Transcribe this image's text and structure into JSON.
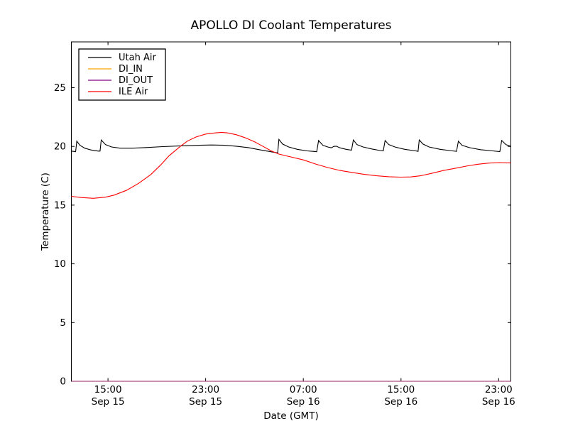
{
  "chart_data": {
    "type": "line",
    "title": "APOLLO DI Coolant Temperatures",
    "xlabel": "Date (GMT)",
    "ylabel": "Temperature (C)",
    "xlim": [
      0,
      36
    ],
    "ylim": [
      0,
      28.9
    ],
    "x_unit": "hours since Sep 15 12:00 GMT",
    "grid": false,
    "legend_position": "upper-left",
    "x_ticks": [
      {
        "t": 3,
        "time": "15:00",
        "date": "Sep 15"
      },
      {
        "t": 11,
        "time": "23:00",
        "date": "Sep 15"
      },
      {
        "t": 19,
        "time": "07:00",
        "date": "Sep 16"
      },
      {
        "t": 27,
        "time": "15:00",
        "date": "Sep 16"
      },
      {
        "t": 35,
        "time": "23:00",
        "date": "Sep 16"
      }
    ],
    "y_ticks": [
      0,
      5,
      10,
      15,
      20,
      25
    ],
    "series": [
      {
        "name": "Utah Air",
        "color": "#000000",
        "points": [
          [
            0,
            19.6
          ],
          [
            0.35,
            19.55
          ],
          [
            0.45,
            20.45
          ],
          [
            0.7,
            20.1
          ],
          [
            1.1,
            19.85
          ],
          [
            1.6,
            19.7
          ],
          [
            2.2,
            19.6
          ],
          [
            2.35,
            19.6
          ],
          [
            2.45,
            20.55
          ],
          [
            2.8,
            20.15
          ],
          [
            3.3,
            19.95
          ],
          [
            4,
            19.85
          ],
          [
            5,
            19.85
          ],
          [
            6,
            19.9
          ],
          [
            7.5,
            19.98
          ],
          [
            9,
            20.05
          ],
          [
            10.5,
            20.1
          ],
          [
            11.5,
            20.12
          ],
          [
            12.5,
            20.1
          ],
          [
            13.5,
            20.02
          ],
          [
            14.5,
            19.9
          ],
          [
            15.5,
            19.7
          ],
          [
            16.3,
            19.55
          ],
          [
            16.9,
            19.45
          ],
          [
            17,
            20.6
          ],
          [
            17.3,
            20.2
          ],
          [
            17.8,
            19.95
          ],
          [
            18.5,
            19.75
          ],
          [
            19.3,
            19.62
          ],
          [
            20.1,
            19.55
          ],
          [
            20.25,
            20.5
          ],
          [
            20.6,
            20.1
          ],
          [
            21,
            19.95
          ],
          [
            21.3,
            19.88
          ],
          [
            21.5,
            20
          ],
          [
            21.7,
            20.02
          ],
          [
            22,
            19.88
          ],
          [
            22.5,
            19.75
          ],
          [
            22.95,
            19.68
          ],
          [
            23.1,
            20.55
          ],
          [
            23.4,
            20.15
          ],
          [
            23.9,
            19.95
          ],
          [
            24.6,
            19.78
          ],
          [
            25.3,
            19.65
          ],
          [
            25.55,
            19.62
          ],
          [
            25.7,
            20.5
          ],
          [
            26,
            20.15
          ],
          [
            26.5,
            19.95
          ],
          [
            27.3,
            19.75
          ],
          [
            28.2,
            19.62
          ],
          [
            28.4,
            19.58
          ],
          [
            28.5,
            20.55
          ],
          [
            28.8,
            20.2
          ],
          [
            29.3,
            19.95
          ],
          [
            30.2,
            19.75
          ],
          [
            31.2,
            19.62
          ],
          [
            31.55,
            19.58
          ],
          [
            31.7,
            20.45
          ],
          [
            32,
            20.1
          ],
          [
            32.6,
            19.9
          ],
          [
            33.5,
            19.72
          ],
          [
            34.5,
            19.62
          ],
          [
            35.1,
            19.56
          ],
          [
            35.25,
            20.5
          ],
          [
            35.6,
            20.15
          ],
          [
            36,
            20
          ]
        ]
      },
      {
        "name": "DI_IN",
        "color": "#ffa500",
        "points": [
          [
            0,
            0
          ],
          [
            36,
            0
          ]
        ]
      },
      {
        "name": "DI_OUT",
        "color": "#800080",
        "points": [
          [
            0,
            0
          ],
          [
            36,
            0
          ]
        ]
      },
      {
        "name": "ILE Air",
        "color": "#ff0000",
        "points": [
          [
            0,
            15.75
          ],
          [
            0.8,
            15.65
          ],
          [
            1.8,
            15.58
          ],
          [
            2.8,
            15.68
          ],
          [
            3.5,
            15.85
          ],
          [
            4.5,
            16.25
          ],
          [
            5.5,
            16.85
          ],
          [
            6.5,
            17.6
          ],
          [
            7.3,
            18.4
          ],
          [
            8,
            19.2
          ],
          [
            8.8,
            19.9
          ],
          [
            9.5,
            20.45
          ],
          [
            10.2,
            20.8
          ],
          [
            11,
            21.05
          ],
          [
            11.8,
            21.15
          ],
          [
            12.3,
            21.2
          ],
          [
            12.8,
            21.15
          ],
          [
            13.5,
            21
          ],
          [
            14.2,
            20.75
          ],
          [
            15,
            20.4
          ],
          [
            15.7,
            20
          ],
          [
            16.4,
            19.6
          ],
          [
            17,
            19.35
          ],
          [
            18,
            19.1
          ],
          [
            19,
            18.85
          ],
          [
            20,
            18.5
          ],
          [
            21,
            18.2
          ],
          [
            22,
            17.95
          ],
          [
            23,
            17.78
          ],
          [
            24,
            17.62
          ],
          [
            25,
            17.5
          ],
          [
            26,
            17.42
          ],
          [
            27,
            17.38
          ],
          [
            27.8,
            17.4
          ],
          [
            28.6,
            17.5
          ],
          [
            29.5,
            17.7
          ],
          [
            30.5,
            17.95
          ],
          [
            31.5,
            18.15
          ],
          [
            32.5,
            18.35
          ],
          [
            33.3,
            18.48
          ],
          [
            34.2,
            18.58
          ],
          [
            35,
            18.62
          ],
          [
            36,
            18.6
          ]
        ]
      }
    ]
  }
}
